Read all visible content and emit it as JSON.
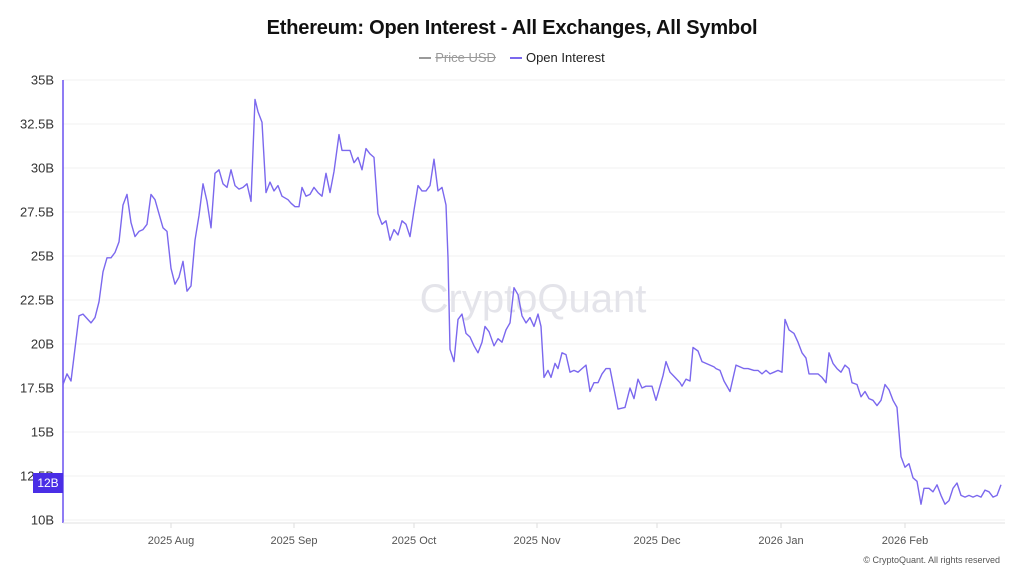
{
  "title": "Ethereum: Open Interest - All Exchanges, All Symbol",
  "legend": [
    {
      "label": "Price USD",
      "color": "#9a9a9a",
      "hidden": true
    },
    {
      "label": "Open Interest",
      "color": "#7b68ee",
      "hidden": false
    }
  ],
  "watermark": "CryptoQuant",
  "footer": "© CryptoQuant. All rights reserved",
  "current_value_badge": "12B",
  "colors": {
    "line": "#7b68ee",
    "axis": "#6a50f0",
    "badge": "#4a2ee6",
    "grid": "#f2f2f2"
  },
  "chart_data": {
    "type": "line",
    "title": "Ethereum: Open Interest - All Exchanges, All Symbol",
    "xlabel": "",
    "ylabel": "",
    "ylim": [
      10,
      35
    ],
    "yticks": [
      "10B",
      "12.5B",
      "15B",
      "17.5B",
      "20B",
      "22.5B",
      "25B",
      "27.5B",
      "30B",
      "32.5B",
      "35B"
    ],
    "xticks": [
      "2025 Aug",
      "2025 Sep",
      "2025 Oct",
      "2025 Nov",
      "2025 Dec",
      "2026 Jan",
      "2026 Feb"
    ],
    "grid": true,
    "legend_position": "top",
    "series": [
      {
        "name": "Open Interest",
        "unit": "USD (billions)",
        "x_start": "2025-07-01",
        "x_end": "2026-02-24",
        "points": [
          [
            63,
            17.7
          ],
          [
            67,
            18.3
          ],
          [
            71,
            17.9
          ],
          [
            79,
            21.6
          ],
          [
            83,
            21.7
          ],
          [
            91,
            21.2
          ],
          [
            95,
            21.5
          ],
          [
            99,
            22.4
          ],
          [
            103,
            24.1
          ],
          [
            107,
            24.9
          ],
          [
            111,
            24.9
          ],
          [
            115,
            25.2
          ],
          [
            119,
            25.8
          ],
          [
            123,
            27.9
          ],
          [
            127,
            28.5
          ],
          [
            131,
            26.9
          ],
          [
            135,
            26.1
          ],
          [
            139,
            26.4
          ],
          [
            143,
            26.5
          ],
          [
            147,
            26.8
          ],
          [
            151,
            28.5
          ],
          [
            155,
            28.2
          ],
          [
            159,
            27.4
          ],
          [
            163,
            26.6
          ],
          [
            167,
            26.4
          ],
          [
            171,
            24.3
          ],
          [
            175,
            23.4
          ],
          [
            179,
            23.8
          ],
          [
            183,
            24.7
          ],
          [
            187,
            23.0
          ],
          [
            191,
            23.3
          ],
          [
            195,
            25.9
          ],
          [
            199,
            27.3
          ],
          [
            203,
            29.1
          ],
          [
            207,
            28.1
          ],
          [
            211,
            26.6
          ],
          [
            215,
            29.7
          ],
          [
            219,
            29.9
          ],
          [
            223,
            29.1
          ],
          [
            227,
            28.9
          ],
          [
            231,
            29.9
          ],
          [
            235,
            29.0
          ],
          [
            239,
            28.8
          ],
          [
            243,
            28.9
          ],
          [
            247,
            29.1
          ],
          [
            251,
            28.1
          ],
          [
            255,
            33.9
          ],
          [
            258,
            33.2
          ],
          [
            262,
            32.6
          ],
          [
            266,
            28.6
          ],
          [
            270,
            29.2
          ],
          [
            274,
            28.7
          ],
          [
            278,
            29.0
          ],
          [
            282,
            28.4
          ],
          [
            288,
            28.2
          ],
          [
            291,
            28.0
          ],
          [
            295,
            27.8
          ],
          [
            299,
            27.8
          ],
          [
            302,
            28.9
          ],
          [
            306,
            28.4
          ],
          [
            310,
            28.5
          ],
          [
            314,
            28.9
          ],
          [
            318,
            28.6
          ],
          [
            322,
            28.4
          ],
          [
            326,
            29.7
          ],
          [
            330,
            28.6
          ],
          [
            334,
            29.8
          ],
          [
            339,
            31.9
          ],
          [
            342,
            31.0
          ],
          [
            346,
            31.0
          ],
          [
            350,
            31.0
          ],
          [
            354,
            30.3
          ],
          [
            358,
            30.6
          ],
          [
            362,
            29.9
          ],
          [
            366,
            31.1
          ],
          [
            370,
            30.8
          ],
          [
            374,
            30.6
          ],
          [
            378,
            27.4
          ],
          [
            382,
            26.8
          ],
          [
            386,
            27.0
          ],
          [
            390,
            25.9
          ],
          [
            394,
            26.5
          ],
          [
            398,
            26.2
          ],
          [
            402,
            27.0
          ],
          [
            406,
            26.8
          ],
          [
            410,
            26.1
          ],
          [
            414,
            27.6
          ],
          [
            418,
            29.0
          ],
          [
            422,
            28.7
          ],
          [
            426,
            28.7
          ],
          [
            430,
            29.0
          ],
          [
            434,
            30.5
          ],
          [
            438,
            28.7
          ],
          [
            442,
            28.9
          ],
          [
            446,
            27.9
          ],
          [
            448,
            24.9
          ],
          [
            450,
            19.7
          ],
          [
            454,
            19.0
          ],
          [
            458,
            21.4
          ],
          [
            462,
            21.7
          ],
          [
            466,
            20.6
          ],
          [
            470,
            20.4
          ],
          [
            474,
            19.9
          ],
          [
            478,
            19.5
          ],
          [
            482,
            20.1
          ],
          [
            485,
            21.0
          ],
          [
            489,
            20.7
          ],
          [
            494,
            19.9
          ],
          [
            498,
            20.3
          ],
          [
            502,
            20.1
          ],
          [
            506,
            20.8
          ],
          [
            510,
            21.2
          ],
          [
            514,
            23.2
          ],
          [
            518,
            22.8
          ],
          [
            522,
            21.6
          ],
          [
            526,
            21.2
          ],
          [
            530,
            21.5
          ],
          [
            534,
            21.0
          ],
          [
            538,
            21.7
          ],
          [
            541,
            21.0
          ],
          [
            544,
            18.1
          ],
          [
            548,
            18.5
          ],
          [
            551,
            18.1
          ],
          [
            555,
            18.9
          ],
          [
            558,
            18.6
          ],
          [
            562,
            19.5
          ],
          [
            566,
            19.4
          ],
          [
            570,
            18.4
          ],
          [
            574,
            18.5
          ],
          [
            578,
            18.4
          ],
          [
            582,
            18.6
          ],
          [
            586,
            18.8
          ],
          [
            590,
            17.3
          ],
          [
            594,
            17.8
          ],
          [
            598,
            17.8
          ],
          [
            602,
            18.3
          ],
          [
            606,
            18.6
          ],
          [
            610,
            18.6
          ],
          [
            618,
            16.3
          ],
          [
            625,
            16.4
          ],
          [
            630,
            17.5
          ],
          [
            634,
            16.9
          ],
          [
            638,
            18.0
          ],
          [
            642,
            17.5
          ],
          [
            646,
            17.6
          ],
          [
            652,
            17.6
          ],
          [
            656,
            16.8
          ],
          [
            663,
            18.2
          ],
          [
            666,
            19.0
          ],
          [
            670,
            18.4
          ],
          [
            675,
            18.1
          ],
          [
            680,
            17.8
          ],
          [
            682,
            17.6
          ],
          [
            686,
            18.0
          ],
          [
            690,
            17.9
          ],
          [
            693,
            19.8
          ],
          [
            698,
            19.6
          ],
          [
            702,
            19.0
          ],
          [
            706,
            18.9
          ],
          [
            710,
            18.8
          ],
          [
            714,
            18.7
          ],
          [
            716,
            18.6
          ],
          [
            720,
            18.5
          ],
          [
            724,
            17.9
          ],
          [
            730,
            17.3
          ],
          [
            736,
            18.8
          ],
          [
            740,
            18.7
          ],
          [
            744,
            18.6
          ],
          [
            748,
            18.6
          ],
          [
            754,
            18.5
          ],
          [
            758,
            18.5
          ],
          [
            762,
            18.3
          ],
          [
            766,
            18.5
          ],
          [
            770,
            18.3
          ],
          [
            774,
            18.4
          ],
          [
            778,
            18.5
          ],
          [
            782,
            18.4
          ],
          [
            785,
            21.4
          ],
          [
            789,
            20.8
          ],
          [
            794,
            20.6
          ],
          [
            798,
            20.1
          ],
          [
            802,
            19.5
          ],
          [
            806,
            19.2
          ],
          [
            809,
            18.3
          ],
          [
            813,
            18.3
          ],
          [
            818,
            18.3
          ],
          [
            822,
            18.1
          ],
          [
            826,
            17.8
          ],
          [
            829,
            19.5
          ],
          [
            833,
            18.9
          ],
          [
            837,
            18.6
          ],
          [
            841,
            18.4
          ],
          [
            845,
            18.8
          ],
          [
            849,
            18.6
          ],
          [
            852,
            17.8
          ],
          [
            857,
            17.7
          ],
          [
            861,
            17.0
          ],
          [
            865,
            17.3
          ],
          [
            869,
            16.9
          ],
          [
            873,
            16.8
          ],
          [
            877,
            16.5
          ],
          [
            881,
            16.8
          ],
          [
            885,
            17.7
          ],
          [
            889,
            17.4
          ],
          [
            893,
            16.8
          ],
          [
            897,
            16.4
          ],
          [
            901,
            13.6
          ],
          [
            905,
            13.0
          ],
          [
            909,
            13.2
          ],
          [
            913,
            12.4
          ],
          [
            917,
            12.2
          ],
          [
            921,
            10.9
          ],
          [
            924,
            11.8
          ],
          [
            929,
            11.8
          ],
          [
            933,
            11.6
          ],
          [
            937,
            12.0
          ],
          [
            941,
            11.4
          ],
          [
            945,
            10.9
          ],
          [
            949,
            11.1
          ],
          [
            953,
            11.8
          ],
          [
            957,
            12.1
          ],
          [
            961,
            11.4
          ],
          [
            965,
            11.3
          ],
          [
            969,
            11.4
          ],
          [
            973,
            11.3
          ],
          [
            977,
            11.4
          ],
          [
            981,
            11.3
          ],
          [
            985,
            11.7
          ],
          [
            989,
            11.6
          ],
          [
            993,
            11.3
          ],
          [
            997,
            11.4
          ],
          [
            1001,
            12.0
          ]
        ]
      }
    ]
  }
}
